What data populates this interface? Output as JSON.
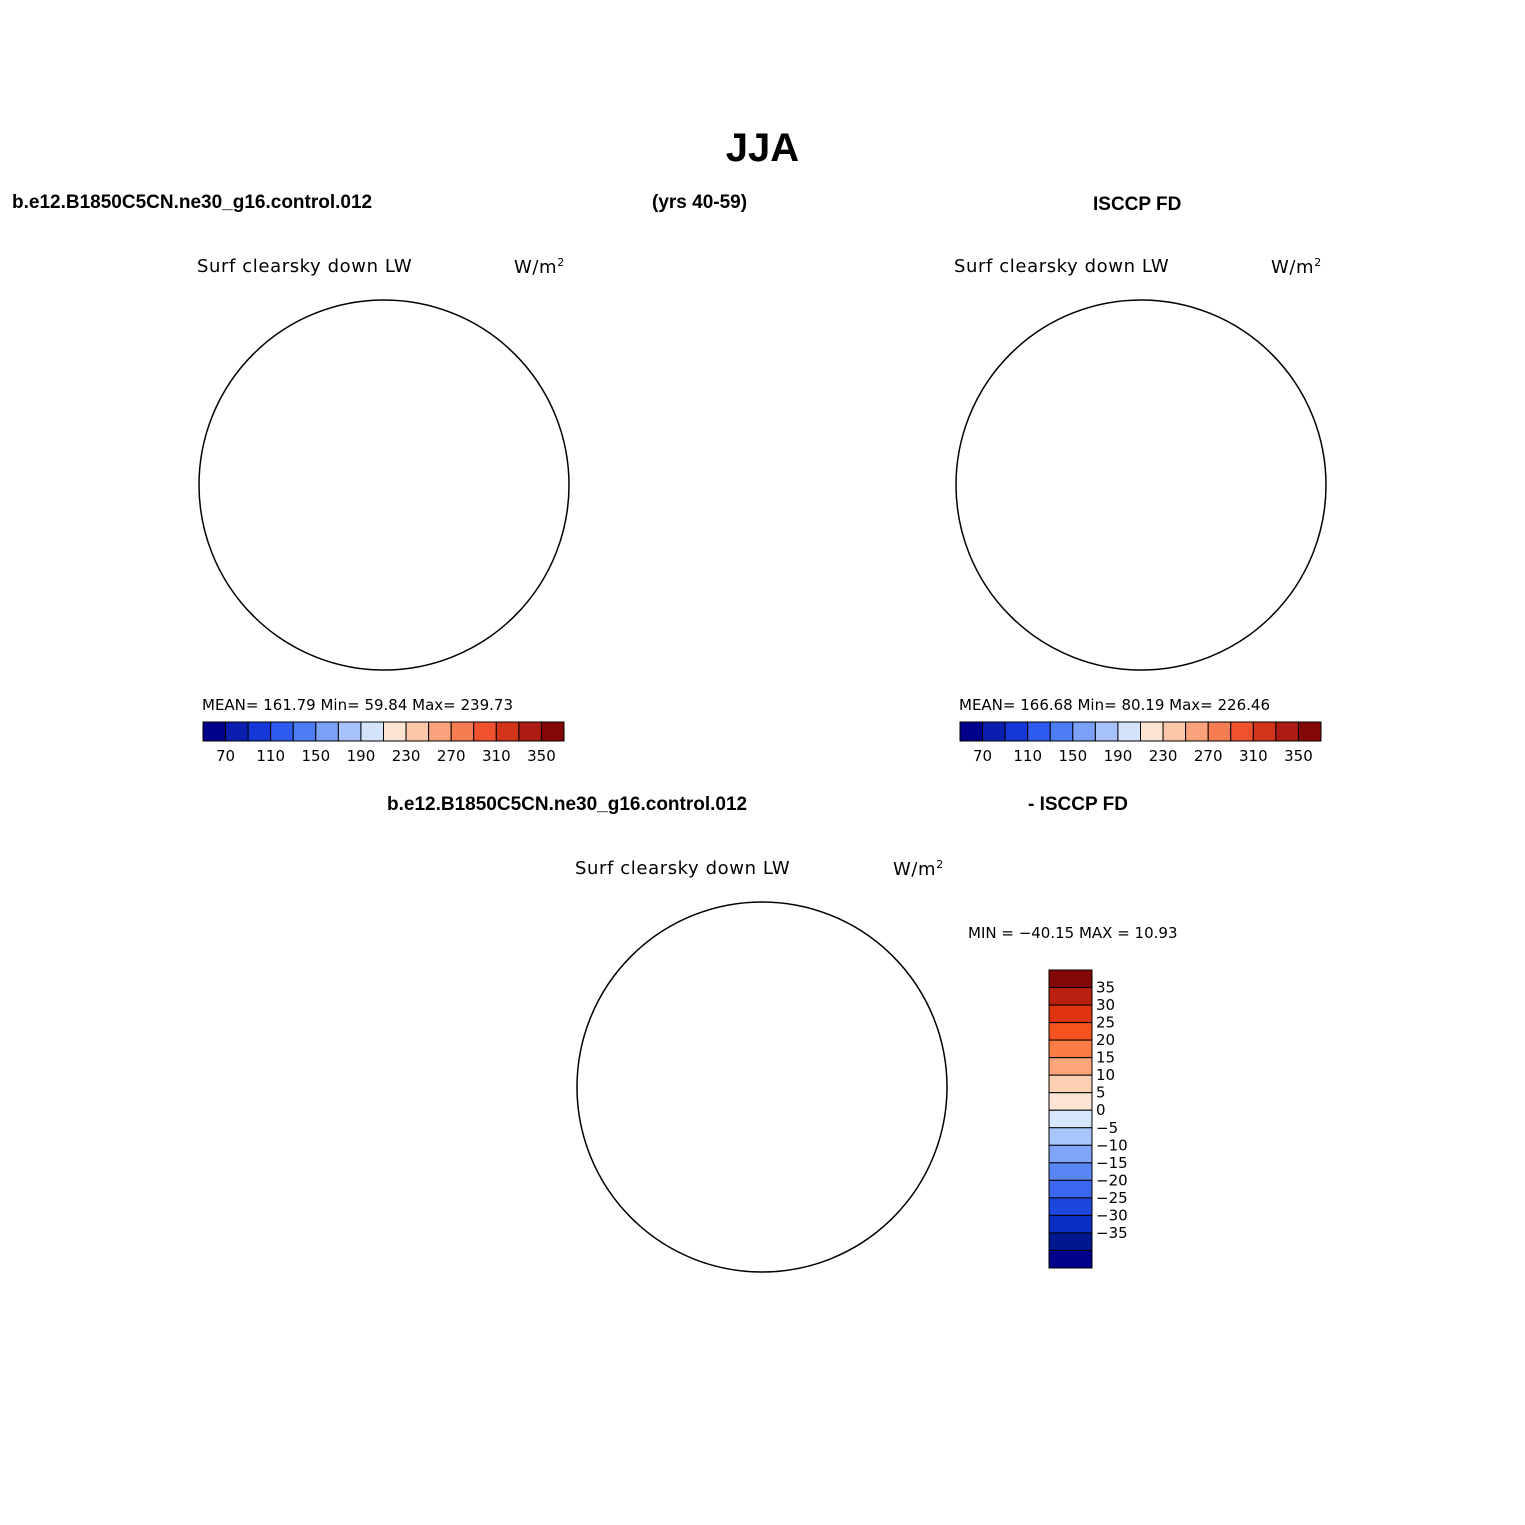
{
  "figure": {
    "title": "JJA",
    "header_left": "b.e12.B1850C5CN.ne30_g16.control.012",
    "header_center": "(yrs 40-59)",
    "header_right": "ISCCP FD",
    "diff_header_left": "b.e12.B1850C5CN.ne30_g16.control.012",
    "diff_header_right": "- ISCCP FD"
  },
  "panels": [
    {
      "id": "model",
      "variable": "Surf clearsky down LW",
      "units_base": "W/m",
      "units_sup": "2",
      "stats": "MEAN= 161.79   Min=  59.84   Max= 239.73"
    },
    {
      "id": "obs",
      "variable": "Surf clearsky down LW",
      "units_base": "W/m",
      "units_sup": "2",
      "stats": "MEAN= 166.68   Min=  80.19   Max= 226.46"
    },
    {
      "id": "diff",
      "variable": "Surf clearsky down LW",
      "units_base": "W/m",
      "units_sup": "2",
      "stats": "MIN = −40.15  MAX =  10.93"
    }
  ],
  "colorbar_abs": {
    "colors": [
      "#00008b",
      "#0a1fb0",
      "#1437d6",
      "#2e5bf0",
      "#4d7df5",
      "#7aa0f8",
      "#a7c2fa",
      "#d3e3fc",
      "#fde4d0",
      "#fcc6a8",
      "#f9a27c",
      "#f67c52",
      "#f0512e",
      "#d3351b",
      "#ac1c12",
      "#820706"
    ],
    "tick_labels": [
      "70",
      "110",
      "150",
      "190",
      "230",
      "270",
      "310",
      "350"
    ]
  },
  "colorbar_diff": {
    "colors": [
      "#820706",
      "#b9200f",
      "#e0340f",
      "#f6521e",
      "#fb7c45",
      "#fca47a",
      "#fdd0b4",
      "#fde4d3",
      "#d6e6fc",
      "#a9c6fa",
      "#7fa4f8",
      "#5a85f5",
      "#3a66f0",
      "#1c47df",
      "#0a2ec2",
      "#00188f",
      "#00008b"
    ],
    "tick_labels": [
      "35",
      "30",
      "25",
      "20",
      "15",
      "10",
      "5",
      "0",
      "−5",
      "−10",
      "−15",
      "−20",
      "−25",
      "−30",
      "−35"
    ]
  },
  "chart_data": [
    {
      "type": "heatmap",
      "panel": "model",
      "projection": "south polar stereographic",
      "variable": "Surf clearsky down LW",
      "units": "W/m2",
      "mean": 161.79,
      "min": 59.84,
      "max": 239.73,
      "contour_levels": [
        60,
        70,
        90,
        110,
        130,
        150,
        170,
        190,
        210,
        230,
        250,
        270,
        290,
        310,
        330,
        350
      ]
    },
    {
      "type": "heatmap",
      "panel": "obs",
      "projection": "south polar stereographic",
      "variable": "Surf clearsky down LW",
      "units": "W/m2",
      "mean": 166.68,
      "min": 80.19,
      "max": 226.46,
      "contour_levels": [
        60,
        70,
        90,
        110,
        130,
        150,
        170,
        190,
        210,
        230,
        250,
        270,
        290,
        310,
        330,
        350
      ]
    },
    {
      "type": "heatmap",
      "panel": "diff",
      "projection": "south polar stereographic",
      "variable": "Surf clearsky down LW",
      "units": "W/m2",
      "min": -40.15,
      "max": 10.93,
      "contour_levels": [
        -35,
        -30,
        -25,
        -20,
        -15,
        -10,
        -5,
        0,
        5,
        10,
        15,
        20,
        25,
        30,
        35
      ]
    }
  ]
}
